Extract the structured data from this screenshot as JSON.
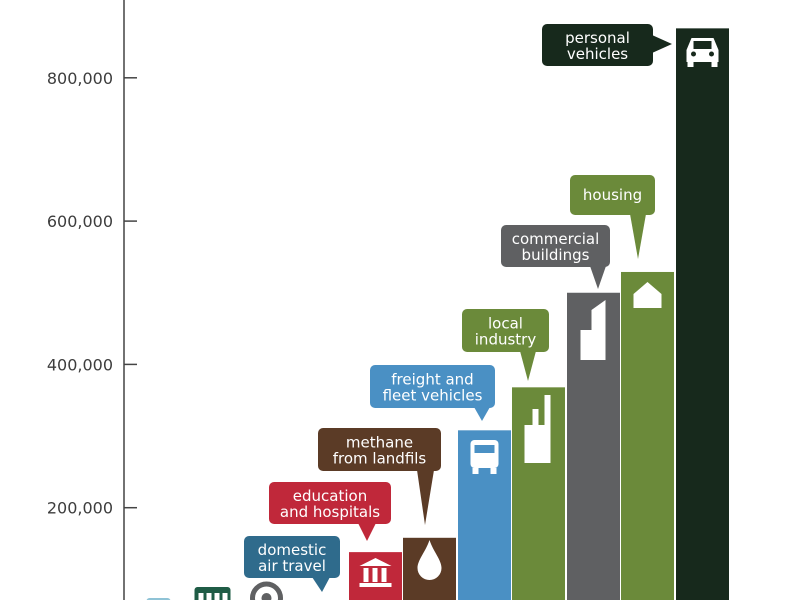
{
  "chart_data": {
    "type": "bar",
    "title": "",
    "xlabel": "",
    "ylabel": "",
    "ylim": [
      0,
      900000
    ],
    "grid": false,
    "y_ticks": [
      "200,000",
      "400,000",
      "600,000",
      "800,000"
    ],
    "y_tick_values": [
      200000,
      400000,
      600000,
      800000
    ],
    "categories": [
      {
        "label": "",
        "icon": "light-rail-icon",
        "color": "#8fc3d6",
        "value": null
      },
      {
        "label": "",
        "icon": "train-icon",
        "color": "#1f5c46",
        "value": null
      },
      {
        "label": "",
        "icon": "steering-wheel-icon",
        "color": "#5f6062",
        "value": null
      },
      {
        "label": "domestic\nair travel",
        "icon": "airplane-icon",
        "color": "#2f6b8c",
        "value": null
      },
      {
        "label": "education\nand hospitals",
        "icon": "building-columns-icon",
        "color": "#c0283a",
        "value": 138000
      },
      {
        "label": "methane\nfrom landfils",
        "icon": "drop-icon",
        "color": "#5b3b26",
        "value": 158000
      },
      {
        "label": "freight and\nfleet vehicles",
        "icon": "truck-icon",
        "color": "#4a90c4",
        "value": 308000
      },
      {
        "label": "local\nindustry",
        "icon": "factory-icon",
        "color": "#6b8a3a",
        "value": 368000
      },
      {
        "label": "commercial\nbuildings",
        "icon": "office-tower-icon",
        "color": "#5f6062",
        "value": 500000
      },
      {
        "label": "housing",
        "icon": "house-icon",
        "color": "#6b8a3a",
        "value": 529000
      },
      {
        "label": "personal\nvehicles",
        "icon": "car-icon",
        "color": "#17291c",
        "value": 869000
      }
    ]
  }
}
